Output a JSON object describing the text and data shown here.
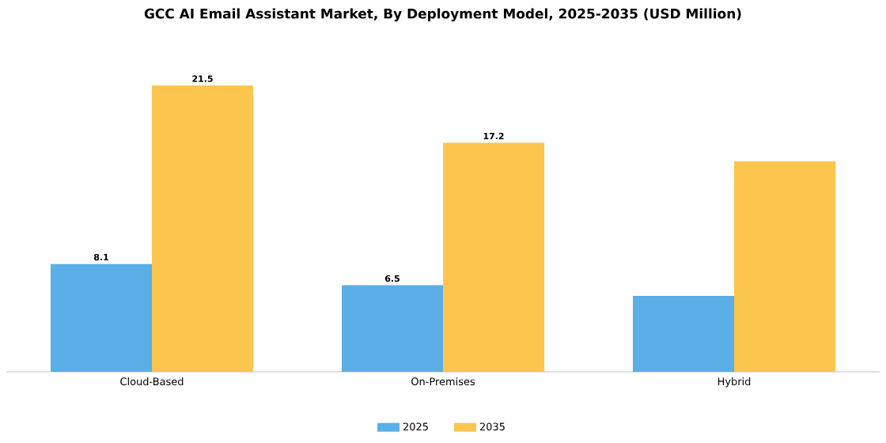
{
  "chart_data": {
    "type": "bar",
    "title": "GCC AI Email Assistant Market, By Deployment Model, 2025-2035 (USD Million)",
    "categories": [
      "Cloud-Based",
      "On-Premises",
      "Hybrid"
    ],
    "series": [
      {
        "name": "2025",
        "color": "#5aafe6",
        "values": [
          8.1,
          6.5,
          5.7
        ],
        "value_labels": [
          "8.1",
          "6.5",
          null
        ]
      },
      {
        "name": "2035",
        "color": "#fcc54e",
        "values": [
          21.5,
          17.2,
          15.8
        ],
        "value_labels": [
          "21.5",
          "17.2",
          null
        ]
      }
    ],
    "legend": "bottom"
  }
}
